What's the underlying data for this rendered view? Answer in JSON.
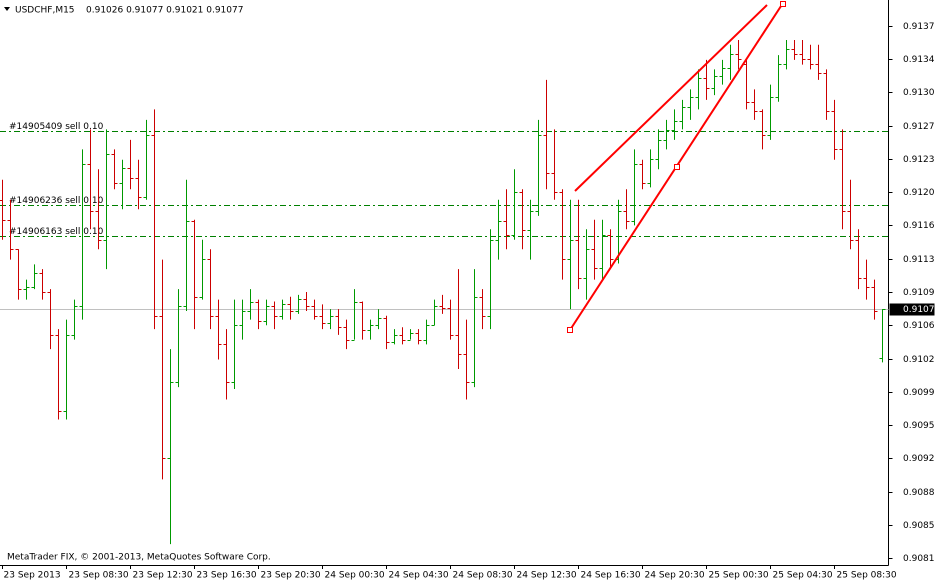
{
  "chart_data": {
    "type": "ohlc",
    "title": "USDCHF,M15",
    "ohlc_label": "0.91026 0.91077 0.91021 0.91077",
    "footer": "MetaTrader FIX, © 2001-2013, MetaQuotes Software Corp.",
    "bull_color": "#009900",
    "bear_color": "#cc0000",
    "current_price": 0.91077,
    "orders": [
      {
        "label": "#14905409 sell 0.10",
        "price": 0.91264,
        "color": "#008000"
      },
      {
        "label": "#14906236 sell 0.10",
        "price": 0.91186,
        "color": "#008000"
      },
      {
        "label": "#14906163 sell 0.10",
        "price": 0.91154,
        "color": "#008000"
      }
    ],
    "ylim": [
      0.90808,
      0.91402
    ],
    "yticks": [
      0.91375,
      {
        "value": 0.9134,
        "label": "0.91340"
      },
      0.91305,
      {
        "value": 0.9127,
        "label": "0.91270"
      },
      0.91235,
      {
        "value": 0.912,
        "label": "0.91200"
      },
      0.91165,
      {
        "value": 0.9113,
        "label": "0.91130"
      },
      0.91095,
      {
        "value": 0.9106,
        "label": "0.91060"
      },
      0.91025,
      {
        "value": 0.9099,
        "label": "0.90990"
      },
      0.90955,
      {
        "value": 0.9092,
        "label": "0.90920"
      },
      0.90885,
      {
        "value": 0.9085,
        "label": "0.90850"
      },
      0.90815
    ],
    "categories": [
      "23 Sep 2013",
      null,
      null,
      null,
      null,
      null,
      null,
      null,
      "23 Sep 08:30",
      null,
      null,
      null,
      null,
      null,
      null,
      null,
      "23 Sep 12:30",
      null,
      null,
      null,
      null,
      null,
      null,
      null,
      "23 Sep 16:30",
      null,
      null,
      null,
      null,
      null,
      null,
      null,
      "23 Sep 20:30",
      null,
      null,
      null,
      null,
      null,
      null,
      null,
      "24 Sep 00:30",
      null,
      null,
      null,
      null,
      null,
      null,
      null,
      "24 Sep 04:30",
      null,
      null,
      null,
      null,
      null,
      null,
      null,
      "24 Sep 08:30",
      null,
      null,
      null,
      null,
      null,
      null,
      null,
      "24 Sep 12:30",
      null,
      null,
      null,
      null,
      null,
      null,
      null,
      "24 Sep 16:30",
      null,
      null,
      null,
      null,
      null,
      null,
      null,
      "24 Sep 20:30",
      null,
      null,
      null,
      null,
      null,
      null,
      null,
      "25 Sep 00:30",
      null,
      null,
      null,
      null,
      null,
      null,
      null,
      "25 Sep 04:30",
      null,
      null,
      null,
      null,
      null,
      null,
      null,
      "25 Sep 08:30",
      null,
      null,
      null,
      null,
      null,
      null
    ],
    "bars": [
      [
        0.91192,
        0.91213,
        0.9115,
        0.91171
      ],
      [
        0.91171,
        0.91192,
        0.91129,
        0.9114
      ],
      [
        0.9114,
        0.9114,
        0.91087,
        0.91098
      ],
      [
        0.91098,
        0.91108,
        0.91087,
        0.911
      ],
      [
        0.911,
        0.91124,
        0.91098,
        0.91115
      ],
      [
        0.91115,
        0.91119,
        0.91087,
        0.91095
      ],
      [
        0.91095,
        0.91098,
        0.91035,
        0.9105
      ],
      [
        0.9105,
        0.91056,
        0.90961,
        0.9097
      ],
      [
        0.9097,
        0.91066,
        0.90961,
        0.9105
      ],
      [
        0.9105,
        0.91087,
        0.91045,
        0.9108
      ],
      [
        0.9108,
        0.91245,
        0.91066,
        0.9123
      ],
      [
        0.9123,
        0.91266,
        0.91161,
        0.9118
      ],
      [
        0.9118,
        0.91224,
        0.9114,
        0.9115
      ],
      [
        0.9115,
        0.91266,
        0.91119,
        0.9124
      ],
      [
        0.9124,
        0.91245,
        0.91203,
        0.9121
      ],
      [
        0.9121,
        0.91234,
        0.91182,
        0.91225
      ],
      [
        0.91225,
        0.91255,
        0.91203,
        0.91215
      ],
      [
        0.91215,
        0.91234,
        0.91182,
        0.91195
      ],
      [
        0.91195,
        0.91276,
        0.91192,
        0.9126
      ],
      [
        0.9126,
        0.91287,
        0.91056,
        0.9107
      ],
      [
        0.9107,
        0.91129,
        0.90898,
        0.9092
      ],
      [
        0.9092,
        0.91035,
        0.9083,
        0.91
      ],
      [
        0.91,
        0.91098,
        0.90995,
        0.9108
      ],
      [
        0.9108,
        0.91213,
        0.91075,
        0.9117
      ],
      [
        0.9117,
        0.91171,
        0.91056,
        0.9109
      ],
      [
        0.9109,
        0.9115,
        0.91087,
        0.9113
      ],
      [
        0.9113,
        0.9114,
        0.91056,
        0.9107
      ],
      [
        0.9107,
        0.91087,
        0.91024,
        0.9104
      ],
      [
        0.9104,
        0.91056,
        0.90982,
        0.91
      ],
      [
        0.91,
        0.91087,
        0.90993,
        0.9106
      ],
      [
        0.9106,
        0.91087,
        0.91045,
        0.91075
      ],
      [
        0.91075,
        0.91098,
        0.91066,
        0.91085
      ],
      [
        0.91085,
        0.91087,
        0.91056,
        0.91065
      ],
      [
        0.91065,
        0.91087,
        0.9106,
        0.9108
      ],
      [
        0.9108,
        0.91085,
        0.91056,
        0.9107
      ],
      [
        0.9107,
        0.91087,
        0.91066,
        0.91082
      ],
      [
        0.91082,
        0.9109,
        0.91066,
        0.91075
      ],
      [
        0.91075,
        0.91092,
        0.91072,
        0.91088
      ],
      [
        0.91088,
        0.91095,
        0.91075,
        0.9108
      ],
      [
        0.9108,
        0.91087,
        0.91066,
        0.9107
      ],
      [
        0.9107,
        0.91082,
        0.91056,
        0.91062
      ],
      [
        0.91062,
        0.91077,
        0.91056,
        0.9107
      ],
      [
        0.9107,
        0.91077,
        0.9105,
        0.91058
      ],
      [
        0.91058,
        0.91066,
        0.91035,
        0.91045
      ],
      [
        0.91045,
        0.91098,
        0.91045,
        0.91085
      ],
      [
        0.91085,
        0.91085,
        0.91045,
        0.91055
      ],
      [
        0.91055,
        0.91066,
        0.91045,
        0.9106
      ],
      [
        0.9106,
        0.91077,
        0.91056,
        0.91068
      ],
      [
        0.91068,
        0.9107,
        0.91035,
        0.91042
      ],
      [
        0.91042,
        0.91056,
        0.9104,
        0.9105
      ],
      [
        0.9105,
        0.91058,
        0.9104,
        0.91045
      ],
      [
        0.91045,
        0.91056,
        0.91045,
        0.91052
      ],
      [
        0.91052,
        0.91056,
        0.9104,
        0.91045
      ],
      [
        0.91045,
        0.91066,
        0.9104,
        0.9106
      ],
      [
        0.9106,
        0.91087,
        0.9106,
        0.9108
      ],
      [
        0.9108,
        0.91092,
        0.91072,
        0.91078
      ],
      [
        0.91078,
        0.91087,
        0.91045,
        0.9105
      ],
      [
        0.9105,
        0.91119,
        0.91014,
        0.9103
      ],
      [
        0.9103,
        0.91066,
        0.90982,
        0.91
      ],
      [
        0.91,
        0.91119,
        0.90995,
        0.9109
      ],
      [
        0.9109,
        0.91098,
        0.91056,
        0.9107
      ],
      [
        0.9107,
        0.91161,
        0.91056,
        0.9115
      ],
      [
        0.9115,
        0.91192,
        0.91129,
        0.9117
      ],
      [
        0.9117,
        0.91203,
        0.9114,
        0.91155
      ],
      [
        0.91155,
        0.91224,
        0.9115,
        0.912
      ],
      [
        0.912,
        0.91203,
        0.9114,
        0.9116
      ],
      [
        0.9116,
        0.91192,
        0.91129,
        0.9118
      ],
      [
        0.9118,
        0.91276,
        0.91175,
        0.9126
      ],
      [
        0.9126,
        0.91318,
        0.91203,
        0.9122
      ],
      [
        0.9122,
        0.91266,
        0.91192,
        0.912
      ],
      [
        0.912,
        0.91203,
        0.91108,
        0.9113
      ],
      [
        0.9113,
        0.91192,
        0.91077,
        0.9115
      ],
      [
        0.9115,
        0.91192,
        0.91098,
        0.9111
      ],
      [
        0.9111,
        0.91161,
        0.91087,
        0.9114
      ],
      [
        0.9114,
        0.91171,
        0.91108,
        0.9112
      ],
      [
        0.9112,
        0.91171,
        0.91108,
        0.91155
      ],
      [
        0.91155,
        0.91161,
        0.91119,
        0.9113
      ],
      [
        0.9113,
        0.91192,
        0.91125,
        0.9118
      ],
      [
        0.9118,
        0.91203,
        0.91161,
        0.9117
      ],
      [
        0.9117,
        0.91245,
        0.91165,
        0.9123
      ],
      [
        0.9123,
        0.91234,
        0.91203,
        0.9121
      ],
      [
        0.9121,
        0.91245,
        0.91205,
        0.91235
      ],
      [
        0.91235,
        0.91266,
        0.91224,
        0.91255
      ],
      [
        0.91255,
        0.91276,
        0.91245,
        0.91265
      ],
      [
        0.91265,
        0.91287,
        0.91255,
        0.91275
      ],
      [
        0.91275,
        0.91297,
        0.91266,
        0.9129
      ],
      [
        0.9129,
        0.91308,
        0.91276,
        0.913
      ],
      [
        0.913,
        0.91329,
        0.91287,
        0.9132
      ],
      [
        0.9132,
        0.91339,
        0.91297,
        0.9131
      ],
      [
        0.9131,
        0.91329,
        0.91302,
        0.91322
      ],
      [
        0.91322,
        0.91339,
        0.91313,
        0.9133
      ],
      [
        0.9133,
        0.91355,
        0.91318,
        0.91345
      ],
      [
        0.91345,
        0.9136,
        0.91329,
        0.9134
      ],
      [
        0.91335,
        0.91339,
        0.91287,
        0.91295
      ],
      [
        0.91295,
        0.91308,
        0.91276,
        0.91285
      ],
      [
        0.91285,
        0.91287,
        0.91245,
        0.9126
      ],
      [
        0.9126,
        0.91313,
        0.91255,
        0.913
      ],
      [
        0.913,
        0.91344,
        0.91295,
        0.91335
      ],
      [
        0.91335,
        0.9136,
        0.91329,
        0.9135
      ],
      [
        0.9135,
        0.9136,
        0.91339,
        0.91345
      ],
      [
        0.91345,
        0.9136,
        0.91334,
        0.9134
      ],
      [
        0.9134,
        0.91355,
        0.91329,
        0.91335
      ],
      [
        0.91335,
        0.91355,
        0.91318,
        0.91325
      ],
      [
        0.91325,
        0.91329,
        0.91276,
        0.91285
      ],
      [
        0.91285,
        0.91297,
        0.91234,
        0.91245
      ],
      [
        0.91245,
        0.91266,
        0.91161,
        0.9118
      ],
      [
        0.9118,
        0.91213,
        0.9114,
        0.9115
      ],
      [
        0.9115,
        0.91161,
        0.91098,
        0.9111
      ],
      [
        0.9111,
        0.91129,
        0.91087,
        0.911
      ],
      [
        0.911,
        0.91108,
        0.91066,
        0.91075
      ],
      [
        0.91026,
        0.91077,
        0.91021,
        0.91077
      ]
    ]
  }
}
